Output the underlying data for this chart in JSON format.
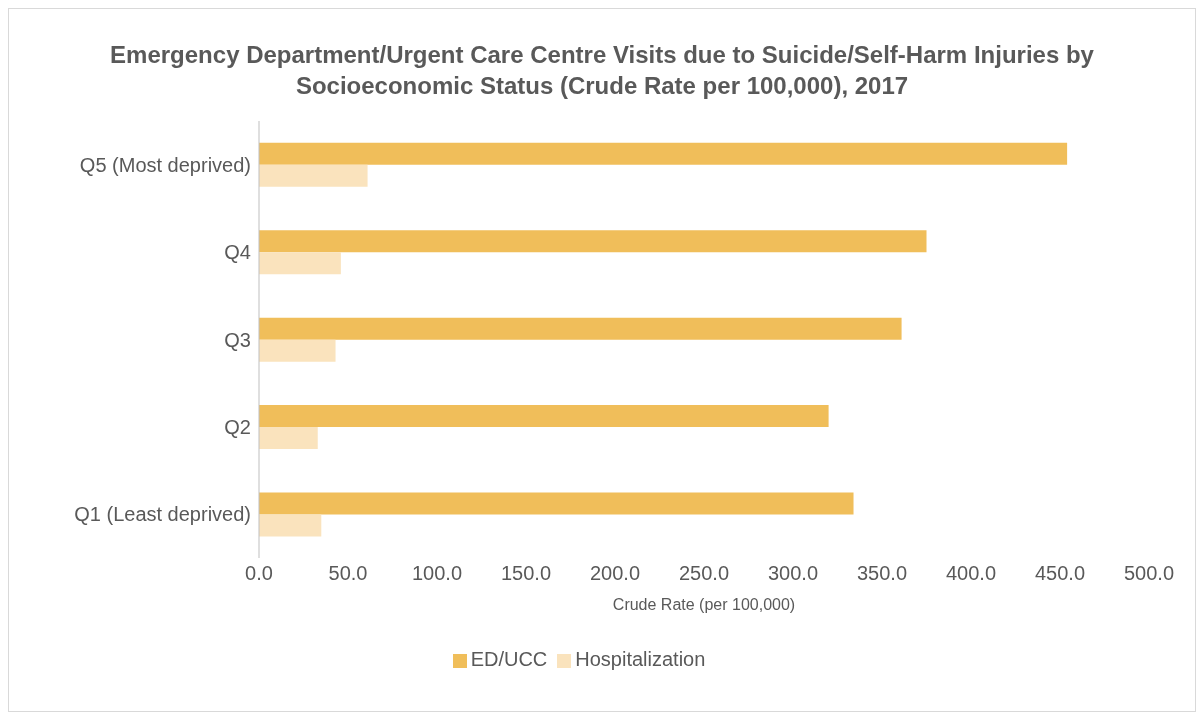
{
  "chart_data": {
    "type": "bar",
    "orientation": "horizontal",
    "title": "Emergency Department/Urgent Care Centre Visits due to Suicide/Self-Harm Injuries by Socioeconomic Status (Crude Rate per 100,000), 2017",
    "xlabel": "Crude Rate (per 100,000)",
    "categories": [
      "Q5 (Most deprived)",
      "Q4",
      "Q3",
      "Q2",
      "Q1 (Least deprived)"
    ],
    "series": [
      {
        "name": "ED/UCC",
        "color": "#f0be5a",
        "values": [
          454,
          375,
          361,
          320,
          334
        ]
      },
      {
        "name": "Hospitalization",
        "color": "#fae3bd",
        "values": [
          61,
          46,
          43,
          33,
          35
        ]
      }
    ],
    "xlim": [
      0,
      500
    ],
    "xticks": [
      {
        "value": 0,
        "label": "0.0"
      },
      {
        "value": 50,
        "label": "50.0"
      },
      {
        "value": 100,
        "label": "100.0"
      },
      {
        "value": 150,
        "label": "150.0"
      },
      {
        "value": 200,
        "label": "200.0"
      },
      {
        "value": 250,
        "label": "250.0"
      },
      {
        "value": 300,
        "label": "300.0"
      },
      {
        "value": 350,
        "label": "350.0"
      },
      {
        "value": 400,
        "label": "400.0"
      },
      {
        "value": 450,
        "label": "450.0"
      },
      {
        "value": 500,
        "label": "500.0"
      }
    ],
    "grid": false,
    "legend": "bottom"
  }
}
